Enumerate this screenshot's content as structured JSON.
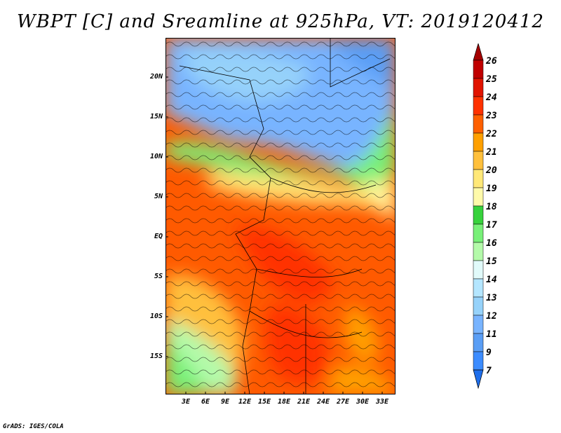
{
  "title": "WBPT [C] and Sreamline at 925hPa, VT: 2019120412",
  "credit": "GrADS: IGES/COLA",
  "map": {
    "variable": "Wet-bulb potential temperature",
    "units": "C",
    "level": "925hPa",
    "valid_time": "2019120412",
    "lat_labels": [
      "20N",
      "15N",
      "10N",
      "5N",
      "EQ",
      "5S",
      "10S",
      "15S"
    ],
    "lon_labels": [
      "3E",
      "6E",
      "9E",
      "12E",
      "15E",
      "18E",
      "21E",
      "24E",
      "27E",
      "30E",
      "33E"
    ]
  },
  "colorbar": {
    "levels": [
      "7",
      "9",
      "11",
      "12",
      "13",
      "14",
      "15",
      "16",
      "17",
      "18",
      "19",
      "20",
      "21",
      "22",
      "23",
      "24",
      "25",
      "26"
    ],
    "colors": [
      "#1e6eeb",
      "#3c8cff",
      "#5a9ef5",
      "#78b4ff",
      "#96d2fa",
      "#b4e6ff",
      "#e1fafa",
      "#b4faaa",
      "#78f078",
      "#37d23c",
      "#fffaaa",
      "#ffe878",
      "#ffc03c",
      "#ffa000",
      "#ff6000",
      "#ff3200",
      "#e11400",
      "#c00000",
      "#a50000"
    ]
  }
}
